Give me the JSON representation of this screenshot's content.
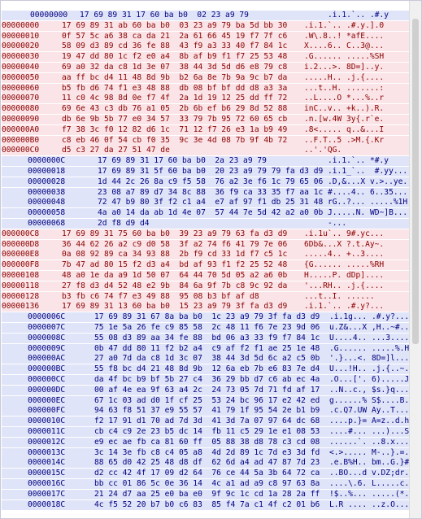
{
  "rows": [
    {
      "tone": "blue",
      "style": "first",
      "addr": "00000000",
      "hex": "17 69 89 31 17 60 ba b0  02 23 a9 79",
      "ascii": ".i.1.`.. .#.y"
    },
    {
      "tone": "red",
      "style": "",
      "addr": "00000000",
      "hex": "17 69 89 31 ab 60 ba b0  03 23 a9 79 ba 5d bb 30",
      "ascii": ".i.1.`.. .#.y.].0"
    },
    {
      "tone": "red",
      "style": "",
      "addr": "00000010",
      "hex": "0f 57 5c a6 38 ca da 21  2a 61 66 45 19 f7 7f c6",
      "ascii": ".W\\.8..! *afE...."
    },
    {
      "tone": "red",
      "style": "",
      "addr": "00000020",
      "hex": "58 09 d3 89 cd 36 fe 88  43 f9 a3 33 40 f7 84 1c",
      "ascii": "X....6.. C..3@..."
    },
    {
      "tone": "red",
      "style": "",
      "addr": "00000030",
      "hex": "19 47 dd 80 1c f2 e0 a4  8b af b9 f1 f7 25 53 48",
      "ascii": ".G...... .....%SH"
    },
    {
      "tone": "red",
      "style": "",
      "addr": "00000040",
      "hex": "69 a0 32 da c8 1d 3e 07  38 44 3d 5d d6 e8 79 c8",
      "ascii": "i.2...>. 8D=]..y."
    },
    {
      "tone": "red",
      "style": "",
      "addr": "00000050",
      "hex": "aa ff bc d4 11 48 8d 9b  b2 6a 8e 7b 9a 9c b7 da",
      "ascii": ".....H.. .j.{...."
    },
    {
      "tone": "red",
      "style": "",
      "addr": "00000060",
      "hex": "b5 fb d6 74 f1 e3 48 88  db 08 bf bf dd d8 a3 3a",
      "ascii": "...t..H. .......:"
    },
    {
      "tone": "red",
      "style": "",
      "addr": "00000070",
      "hex": "11 c0 4c 98 8d 0e f7 4f  2a 1d 19 12 25 dd ff 72",
      "ascii": "..L....O *...%..r"
    },
    {
      "tone": "red",
      "style": "",
      "addr": "00000080",
      "hex": "69 6e 43 c3 db 76 a1 05  2b 6b ef b6 29 8d 52 88",
      "ascii": "inC..v.. +k..).R."
    },
    {
      "tone": "red",
      "style": "",
      "addr": "00000090",
      "hex": "db 6e 9b 5b 77 e0 34 57  33 79 7b 95 72 60 65 cb",
      "ascii": ".n.[w.4W 3y{.r`e."
    },
    {
      "tone": "red",
      "style": "",
      "addr": "000000A0",
      "hex": "f7 38 3c f0 12 82 d6 1c  71 12 f7 26 e3 1a b9 49",
      "ascii": ".8<..... q..&...I"
    },
    {
      "tone": "red",
      "style": "",
      "addr": "000000B0",
      "hex": "c8 eb 46 0f 54 cb f0 35  9c 3e 4d 08 7b 9f 4b 72",
      "ascii": "..F.T..5 .>M.{.Kr"
    },
    {
      "tone": "red",
      "style": "",
      "addr": "000000C0",
      "hex": "d5 c3 27 da 27 51 47 de",
      "ascii": "..'.'QG."
    },
    {
      "tone": "blue",
      "style": "ind1",
      "addr": "0000000C",
      "hex": "17 69 89 31 17 60 ba b0  2a 23 a9 79",
      "ascii": ".i.1.`.. *#.y"
    },
    {
      "tone": "blue",
      "style": "ind1",
      "addr": "00000018",
      "hex": "17 69 89 31 5f 60 ba b0  20 23 a9 79 79 fa d3 d9",
      "ascii": ".i.1_`..  #.yy..."
    },
    {
      "tone": "blue",
      "style": "ind1",
      "addr": "00000028",
      "hex": "1d 44 2c 26 8a c9 f5 58  76 a2 3e f6 1c 79 65 06",
      "ascii": ".D,&...X v.>..ye."
    },
    {
      "tone": "blue",
      "style": "ind1",
      "addr": "00000038",
      "hex": "23 08 a7 89 d7 34 8c 88  36 f9 ca 33 35 f7 aa 1c",
      "ascii": "#....4.. 6..35..."
    },
    {
      "tone": "blue",
      "style": "ind1",
      "addr": "00000048",
      "hex": "72 47 b9 80 3f f2 c1 a4  e7 af 97 f1 db 25 31 48",
      "ascii": "rG..?... .....%1H"
    },
    {
      "tone": "blue",
      "style": "ind1",
      "addr": "00000058",
      "hex": "4a a0 14 da ab 1d 4e 07  57 44 7e 5d 42 a2 a0 0b",
      "ascii": "J.....N. WD~]B..."
    },
    {
      "tone": "blue",
      "style": "ind1",
      "addr": "00000068",
      "hex": "2d f8 d9 d4",
      "ascii": "-..."
    },
    {
      "tone": "red",
      "style": "",
      "addr": "000000C8",
      "hex": "17 69 89 31 75 60 ba b0  39 23 a9 79 63 fa d3 d9",
      "ascii": ".i.1u`.. 9#.yc..."
    },
    {
      "tone": "red",
      "style": "",
      "addr": "000000D8",
      "hex": "36 44 62 26 a2 c9 d0 58  3f a2 74 f6 41 79 7e 06",
      "ascii": "6Db&...X ?.t.Ay~."
    },
    {
      "tone": "red",
      "style": "",
      "addr": "000000E8",
      "hex": "0a 08 92 89 ca 34 93 88  2b f9 cd 33 1d f7 c5 1c",
      "ascii": ".....4.. +..3...."
    },
    {
      "tone": "red",
      "style": "",
      "addr": "000000F8",
      "hex": "7b 47 ad 80 15 f2 d3 a4  bd af 93 f1 f2 25 52 48",
      "ascii": "{G...... .....%RH"
    },
    {
      "tone": "red",
      "style": "",
      "addr": "00000108",
      "hex": "48 a0 1e da a9 1d 50 07  64 44 70 5d 05 a2 a6 0b",
      "ascii": "H.....P. dDp]...."
    },
    {
      "tone": "red",
      "style": "",
      "addr": "00000118",
      "hex": "27 f8 d3 d4 52 48 e2 9b  84 6a 9f 7b c8 9c 92 da",
      "ascii": "'...RH.. .j.{...."
    },
    {
      "tone": "red",
      "style": "",
      "addr": "00000128",
      "hex": "b3 fb c6 74 f7 e3 49 88  95 08 b3 bf af d8",
      "ascii": "...t..I. ......"
    },
    {
      "tone": "red",
      "style": "",
      "addr": "00000136",
      "hex": "17 69 89 31 13 60 ba b0  15 23 a9 79 3f fa d3 d9",
      "ascii": ".i.1.`.. .#.y?..."
    },
    {
      "tone": "blue",
      "style": "ind2",
      "addr": "0000006C",
      "hex": "17 69 89 31 67 8a ba b0  1c 23 a9 79 3f fa d3 d9",
      "ascii": ".i.1g... .#.y?..."
    },
    {
      "tone": "blue",
      "style": "ind2",
      "addr": "0000007C",
      "hex": "75 1e 5a 26 fe c9 85 58  2c 48 11 f6 7e 23 9d 06",
      "ascii": "u.Z&...X ,H..~#.."
    },
    {
      "tone": "blue",
      "style": "ind2",
      "addr": "0000008C",
      "hex": "55 08 d3 89 aa 34 fe 88  bd 06 a3 33 f9 f7 84 1c",
      "ascii": "U....4.. ...3...."
    },
    {
      "tone": "blue",
      "style": "ind2",
      "addr": "0000009C",
      "hex": "0b 47 dd 80 11 f2 b2 a4  c9 af f2 f1 ae 25 1e 48",
      "ascii": ".G...... .....%.H"
    },
    {
      "tone": "blue",
      "style": "ind2",
      "addr": "000000AC",
      "hex": "27 a0 7d da c8 1d 3c 07  38 44 3d 5d 6c a2 c5 0b",
      "ascii": "'.}...<. 8D=]l..."
    },
    {
      "tone": "blue",
      "style": "ind2",
      "addr": "000000BC",
      "hex": "55 f8 bc d4 21 48 8d 9b  12 6a eb 7b e6 83 7e d4",
      "ascii": "U...!H.. .j.{..~."
    },
    {
      "tone": "blue",
      "style": "ind2",
      "addr": "000000CC",
      "hex": "da 4f bc b9 bf 5b 27 c4  36 29 bb d7 c6 ab ec 4a",
      "ascii": ".O...['. 6).....J"
    },
    {
      "tone": "blue",
      "style": "ind2",
      "addr": "000000DC",
      "hex": "00 af 4e ea 9f 63 a4 2c  24 73 05 7d 71 fd af 17",
      "ascii": "..N..c., $s.}q..."
    },
    {
      "tone": "blue",
      "style": "ind2",
      "addr": "000000EC",
      "hex": "67 1c 03 ad d0 1f cf 25  53 24 bc 96 17 e2 42 ed",
      "ascii": "g......% S$....B."
    },
    {
      "tone": "blue",
      "style": "ind2",
      "addr": "000000FC",
      "hex": "94 63 f8 51 37 e9 55 57  41 79 1f 95 54 2e b1 b9",
      "ascii": ".c.Q7.UW Ay..T...."
    },
    {
      "tone": "blue",
      "style": "ind2",
      "addr": "0000010C",
      "hex": "f2 17 91 d1 70 ad 7d 3d  41 3d 7a 07 97 64 dc 68",
      "ascii": "....p.}= A=z..d.h"
    },
    {
      "tone": "blue",
      "style": "ind2",
      "addr": "0000011C",
      "hex": "cb c4 c9 2e 23 b5 dc 14  fb 11 c5 29 1e e1 08 53",
      "ascii": "....#... ...)...S"
    },
    {
      "tone": "blue",
      "style": "ind2",
      "addr": "0000012C",
      "hex": "e9 ec ae fb ca 81 60 ff  05 88 38 d8 78 c3 cd 08",
      "ascii": "......`. ..8.x..."
    },
    {
      "tone": "blue",
      "style": "ind2",
      "addr": "0000013C",
      "hex": "3c 14 3e fb c8 c4 05 a8  4d 2d 89 1c 7d e3 3d fd",
      "ascii": "<.>..... M-..}.=."
    },
    {
      "tone": "blue",
      "style": "ind2",
      "addr": "0000014C",
      "hex": "88 65 d0 42 25 48 d8 df  62 6d a4 ad 47 87 7d 23",
      "ascii": ".e.B%H.. bm..G.}#"
    },
    {
      "tone": "blue",
      "style": "ind2",
      "addr": "0000015C",
      "hex": "d2 cc 42 4f 17 09 d2 64  76 ce 44 5a 3b 64 72 ca",
      "ascii": "..BO...d v.DZ;dr."
    },
    {
      "tone": "blue",
      "style": "ind2",
      "addr": "0000016C",
      "hex": "bb cc 01 86 5c 0e 36 14  4c a1 ad a9 c8 97 63 8a",
      "ascii": "....\\.6. L.....c."
    },
    {
      "tone": "blue",
      "style": "ind2",
      "addr": "0000017C",
      "hex": "21 24 d7 aa 25 e0 ba e0  9f 9c 1c cd 1a 28 2a ff",
      "ascii": "!$..%... .....(*."
    },
    {
      "tone": "blue",
      "style": "ind2",
      "addr": "0000018C",
      "hex": "4c f5 52 20 b7 b0 c6 83  85 f4 7a c1 4f c2 01 b6",
      "ascii": "L.R .... ..z.O..."
    }
  ]
}
